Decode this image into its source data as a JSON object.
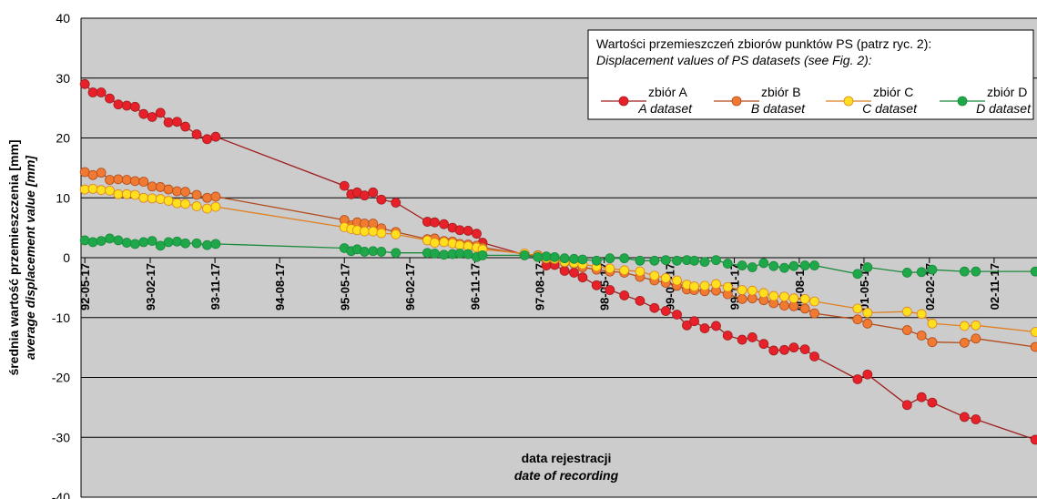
{
  "chart_data": {
    "type": "line",
    "title": "",
    "ylabel": "średnia wartość przemieszczenia [mm]",
    "ylabel_en": "average displacement value [mm]",
    "xlabel": "data rejestracji",
    "xlabel_en": "date of recording",
    "ylim": [
      -40,
      40
    ],
    "yticks": [
      40,
      30,
      20,
      10,
      0,
      -10,
      -20,
      -30,
      -40
    ],
    "xlim": [
      "1992-05-01",
      "2003-05-17"
    ],
    "xticks": [
      "92-05-17",
      "93-02-17",
      "93-11-17",
      "94-08-17",
      "95-05-17",
      "96-02-17",
      "96-11-17",
      "97-08-17",
      "98-05-17",
      "99-02-17",
      "99-11-17",
      "00-08-17",
      "01-05-17",
      "02-02-17",
      "02-11-17"
    ],
    "xtick_dates": [
      "1992-05-17",
      "1993-02-17",
      "1993-11-17",
      "1994-08-17",
      "1995-05-17",
      "1996-02-17",
      "1996-11-17",
      "1997-08-17",
      "1998-05-17",
      "1999-02-17",
      "1999-11-17",
      "2000-08-17",
      "2001-05-17",
      "2002-02-17",
      "2002-11-17"
    ],
    "grid": "horizontal",
    "background": "#cccccc",
    "legend": {
      "position": "top-right",
      "title": "Wartości przemieszczeń zbiorów punktów PS (patrz ryc. 2):",
      "subtitle": "Displacement values of PS datasets (see Fig. 2):"
    },
    "series": [
      {
        "name": "zbiór A",
        "name_en": "A dataset",
        "line_color": "#a01e1e",
        "fill": "#e8202a",
        "points": [
          [
            "1992-05-17",
            29.0
          ],
          [
            "1992-06-20",
            27.6
          ],
          [
            "1992-07-25",
            27.6
          ],
          [
            "1992-08-30",
            26.6
          ],
          [
            "1992-10-05",
            25.6
          ],
          [
            "1992-11-10",
            25.4
          ],
          [
            "1992-12-15",
            25.2
          ],
          [
            "1993-01-20",
            24.0
          ],
          [
            "1993-02-25",
            23.5
          ],
          [
            "1993-04-01",
            24.2
          ],
          [
            "1993-05-05",
            22.6
          ],
          [
            "1993-06-10",
            22.7
          ],
          [
            "1993-07-15",
            21.9
          ],
          [
            "1993-09-01",
            20.6
          ],
          [
            "1993-10-15",
            19.8
          ],
          [
            "1993-11-20",
            20.2
          ],
          [
            "1995-05-17",
            12.0
          ],
          [
            "1995-06-15",
            10.6
          ],
          [
            "1995-07-10",
            10.9
          ],
          [
            "1995-08-10",
            10.4
          ],
          [
            "1995-09-15",
            10.9
          ],
          [
            "1995-10-20",
            9.7
          ],
          [
            "1995-12-20",
            9.2
          ],
          [
            "1996-05-01",
            6.0
          ],
          [
            "1996-06-01",
            5.9
          ],
          [
            "1996-07-10",
            5.6
          ],
          [
            "1996-08-15",
            5.0
          ],
          [
            "1996-09-15",
            4.6
          ],
          [
            "1996-10-20",
            4.5
          ],
          [
            "1996-11-25",
            4.0
          ],
          [
            "1996-12-20",
            2.5
          ],
          [
            "1997-06-15",
            0.5
          ],
          [
            "1997-08-10",
            0.2
          ],
          [
            "1997-09-15",
            -1.3
          ],
          [
            "1997-10-20",
            -1.2
          ],
          [
            "1997-12-01",
            -2.2
          ],
          [
            "1998-01-10",
            -2.5
          ],
          [
            "1998-02-15",
            -3.3
          ],
          [
            "1998-04-15",
            -4.6
          ],
          [
            "1998-06-10",
            -5.4
          ],
          [
            "1998-08-10",
            -6.3
          ],
          [
            "1998-10-15",
            -7.2
          ],
          [
            "1998-12-15",
            -8.4
          ],
          [
            "1999-02-01",
            -8.9
          ],
          [
            "1999-03-20",
            -9.5
          ],
          [
            "1999-05-01",
            -11.3
          ],
          [
            "1999-06-01",
            -10.6
          ],
          [
            "1999-07-15",
            -11.8
          ],
          [
            "1999-09-01",
            -11.4
          ],
          [
            "1999-10-20",
            -13.0
          ],
          [
            "1999-12-20",
            -13.7
          ],
          [
            "2000-02-01",
            -13.3
          ],
          [
            "2000-03-20",
            -14.4
          ],
          [
            "2000-05-01",
            -15.5
          ],
          [
            "2000-06-15",
            -15.4
          ],
          [
            "2000-07-25",
            -15.0
          ],
          [
            "2000-09-10",
            -15.3
          ],
          [
            "2000-10-20",
            -16.5
          ],
          [
            "2001-04-20",
            -20.3
          ],
          [
            "2001-06-01",
            -19.5
          ],
          [
            "2001-11-15",
            -24.6
          ],
          [
            "2002-01-15",
            -23.3
          ],
          [
            "2002-03-01",
            -24.2
          ],
          [
            "2002-07-15",
            -26.6
          ],
          [
            "2002-09-01",
            -27.0
          ],
          [
            "2003-05-10",
            -30.4
          ]
        ]
      },
      {
        "name": "zbiór B",
        "name_en": "B dataset",
        "line_color": "#b04a1a",
        "fill": "#f07a32",
        "points": [
          [
            "1992-05-17",
            14.3
          ],
          [
            "1992-06-20",
            13.8
          ],
          [
            "1992-07-25",
            14.2
          ],
          [
            "1992-08-30",
            13.0
          ],
          [
            "1992-10-05",
            13.1
          ],
          [
            "1992-11-10",
            13.0
          ],
          [
            "1992-12-15",
            12.8
          ],
          [
            "1993-01-20",
            12.7
          ],
          [
            "1993-02-25",
            11.9
          ],
          [
            "1993-04-01",
            11.8
          ],
          [
            "1993-05-05",
            11.4
          ],
          [
            "1993-06-10",
            11.1
          ],
          [
            "1993-07-15",
            11.0
          ],
          [
            "1993-09-01",
            10.5
          ],
          [
            "1993-10-15",
            10.0
          ],
          [
            "1993-11-20",
            10.2
          ],
          [
            "1995-05-17",
            6.3
          ],
          [
            "1995-06-15",
            5.4
          ],
          [
            "1995-07-10",
            5.9
          ],
          [
            "1995-08-10",
            5.7
          ],
          [
            "1995-09-15",
            5.7
          ],
          [
            "1995-10-20",
            4.9
          ],
          [
            "1995-12-20",
            4.3
          ],
          [
            "1996-05-01",
            3.1
          ],
          [
            "1996-06-01",
            3.2
          ],
          [
            "1996-07-10",
            2.8
          ],
          [
            "1996-08-15",
            2.7
          ],
          [
            "1996-09-15",
            2.3
          ],
          [
            "1996-10-20",
            2.2
          ],
          [
            "1996-11-25",
            2.0
          ],
          [
            "1996-12-20",
            1.7
          ],
          [
            "1997-06-15",
            0.6
          ],
          [
            "1997-08-10",
            0.4
          ],
          [
            "1997-09-15",
            -0.2
          ],
          [
            "1997-10-20",
            -0.3
          ],
          [
            "1997-12-01",
            -0.8
          ],
          [
            "1998-01-10",
            -1.0
          ],
          [
            "1998-02-15",
            -1.6
          ],
          [
            "1998-04-15",
            -2.0
          ],
          [
            "1998-06-10",
            -2.3
          ],
          [
            "1998-08-10",
            -2.5
          ],
          [
            "1998-10-15",
            -3.2
          ],
          [
            "1998-12-15",
            -3.8
          ],
          [
            "1999-02-01",
            -4.2
          ],
          [
            "1999-03-20",
            -4.7
          ],
          [
            "1999-05-01",
            -5.3
          ],
          [
            "1999-06-01",
            -5.4
          ],
          [
            "1999-07-15",
            -5.6
          ],
          [
            "1999-09-01",
            -5.5
          ],
          [
            "1999-10-20",
            -6.1
          ],
          [
            "1999-12-20",
            -6.9
          ],
          [
            "2000-02-01",
            -6.8
          ],
          [
            "2000-03-20",
            -7.1
          ],
          [
            "2000-05-01",
            -7.6
          ],
          [
            "2000-06-15",
            -8.0
          ],
          [
            "2000-07-25",
            -8.1
          ],
          [
            "2000-09-10",
            -8.5
          ],
          [
            "2000-10-20",
            -9.3
          ],
          [
            "2001-04-20",
            -10.3
          ],
          [
            "2001-06-01",
            -11.0
          ],
          [
            "2001-11-15",
            -12.1
          ],
          [
            "2002-01-15",
            -13.0
          ],
          [
            "2002-03-01",
            -14.1
          ],
          [
            "2002-07-15",
            -14.2
          ],
          [
            "2002-09-01",
            -13.5
          ],
          [
            "2003-05-10",
            -14.9
          ]
        ]
      },
      {
        "name": "zbiór C",
        "name_en": "C dataset",
        "line_color": "#e08020",
        "fill": "#ffe01e",
        "points": [
          [
            "1992-05-17",
            11.4
          ],
          [
            "1992-06-20",
            11.5
          ],
          [
            "1992-07-25",
            11.3
          ],
          [
            "1992-08-30",
            11.2
          ],
          [
            "1992-10-05",
            10.6
          ],
          [
            "1992-11-10",
            10.6
          ],
          [
            "1992-12-15",
            10.5
          ],
          [
            "1993-01-20",
            10.0
          ],
          [
            "1993-02-25",
            9.9
          ],
          [
            "1993-04-01",
            9.8
          ],
          [
            "1993-05-05",
            9.5
          ],
          [
            "1993-06-10",
            9.1
          ],
          [
            "1993-07-15",
            9.0
          ],
          [
            "1993-09-01",
            8.6
          ],
          [
            "1993-10-15",
            8.2
          ],
          [
            "1993-11-20",
            8.5
          ],
          [
            "1995-05-17",
            5.1
          ],
          [
            "1995-06-15",
            4.8
          ],
          [
            "1995-07-10",
            4.6
          ],
          [
            "1995-08-10",
            4.4
          ],
          [
            "1995-09-15",
            4.4
          ],
          [
            "1995-10-20",
            4.1
          ],
          [
            "1995-12-20",
            3.9
          ],
          [
            "1996-05-01",
            2.9
          ],
          [
            "1996-06-01",
            2.5
          ],
          [
            "1996-07-10",
            2.6
          ],
          [
            "1996-08-15",
            2.4
          ],
          [
            "1996-09-15",
            2.1
          ],
          [
            "1996-10-20",
            1.9
          ],
          [
            "1996-11-25",
            1.7
          ],
          [
            "1996-12-20",
            1.4
          ],
          [
            "1997-06-15",
            0.7
          ],
          [
            "1997-08-10",
            0.3
          ],
          [
            "1997-09-15",
            -0.1
          ],
          [
            "1997-10-20",
            -0.2
          ],
          [
            "1997-12-01",
            -0.7
          ],
          [
            "1998-01-10",
            -0.9
          ],
          [
            "1998-02-15",
            -1.1
          ],
          [
            "1998-04-15",
            -1.5
          ],
          [
            "1998-06-10",
            -1.8
          ],
          [
            "1998-08-10",
            -2.1
          ],
          [
            "1998-10-15",
            -2.3
          ],
          [
            "1998-12-15",
            -3.0
          ],
          [
            "1999-02-01",
            -3.4
          ],
          [
            "1999-03-20",
            -3.8
          ],
          [
            "1999-05-01",
            -4.5
          ],
          [
            "1999-06-01",
            -4.8
          ],
          [
            "1999-07-15",
            -4.7
          ],
          [
            "1999-09-01",
            -4.4
          ],
          [
            "1999-10-20",
            -4.9
          ],
          [
            "1999-12-20",
            -5.4
          ],
          [
            "2000-02-01",
            -5.5
          ],
          [
            "2000-03-20",
            -5.9
          ],
          [
            "2000-05-01",
            -6.4
          ],
          [
            "2000-06-15",
            -6.5
          ],
          [
            "2000-07-25",
            -6.8
          ],
          [
            "2000-09-10",
            -6.9
          ],
          [
            "2000-10-20",
            -7.3
          ],
          [
            "2001-04-20",
            -8.5
          ],
          [
            "2001-06-01",
            -9.2
          ],
          [
            "2001-11-15",
            -9.0
          ],
          [
            "2002-01-15",
            -9.4
          ],
          [
            "2002-03-01",
            -11.0
          ],
          [
            "2002-07-15",
            -11.4
          ],
          [
            "2002-09-01",
            -11.3
          ],
          [
            "2003-05-10",
            -12.4
          ]
        ]
      },
      {
        "name": "zbiór D",
        "name_en": "D dataset",
        "line_color": "#1a8a3a",
        "fill": "#1ea84a",
        "points": [
          [
            "1992-05-17",
            2.9
          ],
          [
            "1992-06-20",
            2.6
          ],
          [
            "1992-07-25",
            2.8
          ],
          [
            "1992-08-30",
            3.2
          ],
          [
            "1992-10-05",
            2.9
          ],
          [
            "1992-11-10",
            2.5
          ],
          [
            "1992-12-15",
            2.3
          ],
          [
            "1993-01-20",
            2.6
          ],
          [
            "1993-02-25",
            2.8
          ],
          [
            "1993-04-01",
            2.0
          ],
          [
            "1993-05-05",
            2.6
          ],
          [
            "1993-06-10",
            2.7
          ],
          [
            "1993-07-15",
            2.4
          ],
          [
            "1993-09-01",
            2.4
          ],
          [
            "1993-10-15",
            2.1
          ],
          [
            "1993-11-20",
            2.3
          ],
          [
            "1995-05-17",
            1.6
          ],
          [
            "1995-06-15",
            1.1
          ],
          [
            "1995-07-10",
            1.4
          ],
          [
            "1995-08-10",
            1.0
          ],
          [
            "1995-09-15",
            1.1
          ],
          [
            "1995-10-20",
            1.0
          ],
          [
            "1995-12-20",
            0.8
          ],
          [
            "1996-05-01",
            0.8
          ],
          [
            "1996-06-01",
            0.7
          ],
          [
            "1996-07-10",
            0.5
          ],
          [
            "1996-08-15",
            0.6
          ],
          [
            "1996-09-15",
            0.7
          ],
          [
            "1996-10-20",
            0.6
          ],
          [
            "1996-11-25",
            0.1
          ],
          [
            "1996-12-20",
            0.4
          ],
          [
            "1997-06-15",
            0.4
          ],
          [
            "1997-08-10",
            0.1
          ],
          [
            "1997-09-15",
            0.2
          ],
          [
            "1997-10-20",
            0.1
          ],
          [
            "1997-12-01",
            -0.1
          ],
          [
            "1998-01-10",
            -0.2
          ],
          [
            "1998-02-15",
            -0.3
          ],
          [
            "1998-04-15",
            -0.5
          ],
          [
            "1998-06-10",
            -0.1
          ],
          [
            "1998-08-10",
            -0.1
          ],
          [
            "1998-10-15",
            -0.5
          ],
          [
            "1998-12-15",
            -0.5
          ],
          [
            "1999-02-01",
            -0.4
          ],
          [
            "1999-03-20",
            -0.5
          ],
          [
            "1999-05-01",
            -0.4
          ],
          [
            "1999-06-01",
            -0.5
          ],
          [
            "1999-07-15",
            -0.7
          ],
          [
            "1999-09-01",
            -0.4
          ],
          [
            "1999-10-20",
            -1.0
          ],
          [
            "1999-12-20",
            -1.3
          ],
          [
            "2000-02-01",
            -1.6
          ],
          [
            "2000-03-20",
            -0.9
          ],
          [
            "2000-05-01",
            -1.4
          ],
          [
            "2000-06-15",
            -1.7
          ],
          [
            "2000-07-25",
            -1.4
          ],
          [
            "2000-09-10",
            -1.3
          ],
          [
            "2000-10-20",
            -1.3
          ],
          [
            "2001-04-20",
            -2.7
          ],
          [
            "2001-06-01",
            -1.6
          ],
          [
            "2001-11-15",
            -2.5
          ],
          [
            "2002-01-15",
            -2.4
          ],
          [
            "2002-03-01",
            -2.0
          ],
          [
            "2002-07-15",
            -2.3
          ],
          [
            "2002-09-01",
            -2.3
          ],
          [
            "2003-05-10",
            -2.3
          ]
        ]
      }
    ]
  }
}
